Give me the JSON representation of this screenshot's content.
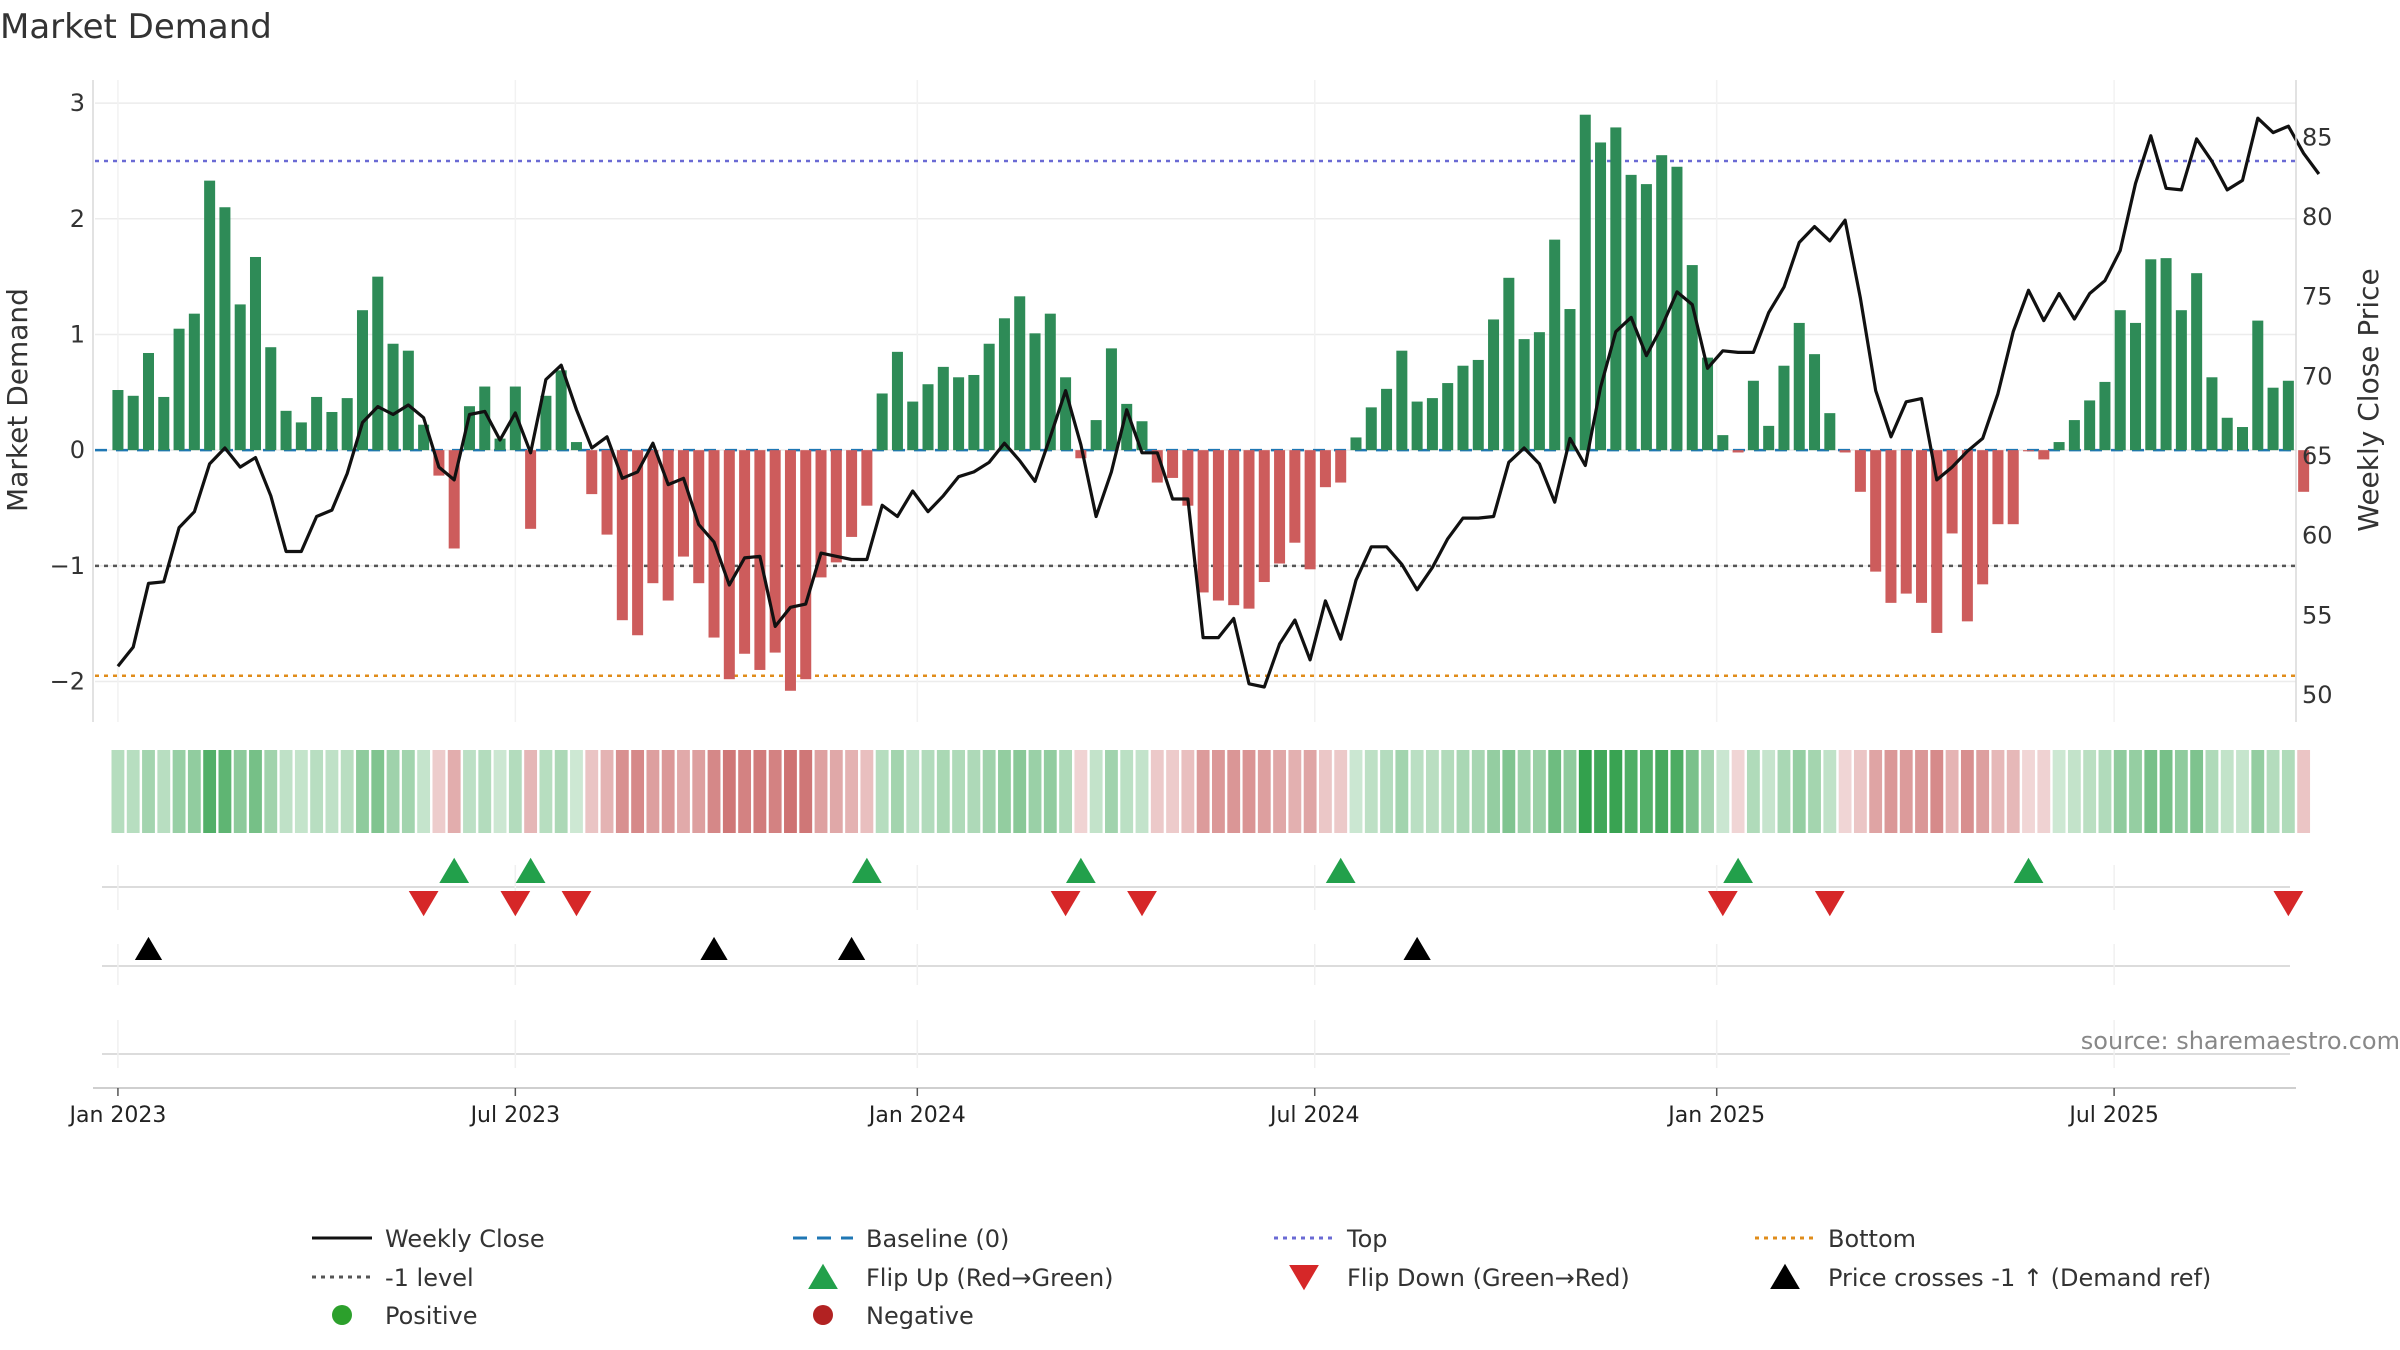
{
  "chart_data": {
    "type": "bar",
    "title": "Market Demand",
    "ylabel": "Market Demand",
    "y2label": "Weekly Close Price",
    "ylim": [
      -2.35,
      3.2
    ],
    "y2lim": [
      48.3,
      88.6
    ],
    "yticks": [
      "3",
      "2",
      "1",
      "0",
      "−1",
      "−2"
    ],
    "y2ticks": [
      "85",
      "80",
      "75",
      "70",
      "65",
      "60",
      "55",
      "50"
    ],
    "x_range_weeks": [
      -1.5,
      142.5
    ],
    "xticks": [
      {
        "label": "Jan 2023",
        "week": 0
      },
      {
        "label": "Jul 2023",
        "week": 26
      },
      {
        "label": "Jan 2024",
        "week": 52.3
      },
      {
        "label": "Jul 2024",
        "week": 78.3
      },
      {
        "label": "Jan 2025",
        "week": 104.6
      },
      {
        "label": "Jul 2025",
        "week": 130.6
      }
    ],
    "reference_lines": {
      "top": 2.5,
      "bottom": -1.95,
      "level_minus1": -1,
      "baseline": 0
    },
    "demand": [
      0.52,
      0.47,
      0.84,
      0.46,
      1.05,
      1.18,
      2.33,
      2.1,
      1.26,
      1.67,
      0.89,
      0.34,
      0.24,
      0.46,
      0.33,
      0.45,
      1.21,
      1.5,
      0.92,
      0.86,
      0.22,
      -0.22,
      -0.85,
      0.38,
      0.55,
      0.1,
      0.55,
      -0.68,
      0.47,
      0.69,
      0.07,
      -0.38,
      -0.73,
      -1.47,
      -1.6,
      -1.15,
      -1.3,
      -0.92,
      -1.15,
      -1.62,
      -1.98,
      -1.76,
      -1.9,
      -1.75,
      -2.08,
      -1.98,
      -1.1,
      -0.97,
      -0.75,
      -0.48,
      0.49,
      0.85,
      0.42,
      0.57,
      0.72,
      0.63,
      0.65,
      0.92,
      1.14,
      1.33,
      1.01,
      1.18,
      0.63,
      -0.07,
      0.26,
      0.88,
      0.4,
      0.25,
      -0.28,
      -0.24,
      -0.48,
      -1.23,
      -1.3,
      -1.34,
      -1.37,
      -1.14,
      -0.98,
      -0.8,
      -1.03,
      -0.32,
      -0.28,
      0.11,
      0.37,
      0.53,
      0.86,
      0.42,
      0.45,
      0.58,
      0.73,
      0.78,
      1.13,
      1.49,
      0.96,
      1.02,
      1.82,
      1.22,
      2.9,
      2.66,
      2.79,
      2.38,
      2.3,
      2.55,
      2.45,
      1.6,
      0.8,
      0.13,
      -0.02,
      0.6,
      0.21,
      0.73,
      1.1,
      0.83,
      0.32,
      -0.02,
      -0.36,
      -1.05,
      -1.32,
      -1.24,
      -1.32,
      -1.58,
      -0.72,
      -1.48,
      -1.16,
      -0.64,
      -0.64,
      -0.01,
      -0.08,
      0.07,
      0.26,
      0.43,
      0.59,
      1.21,
      1.1,
      1.65,
      1.66,
      1.21,
      1.53,
      0.63,
      0.28,
      0.2,
      1.12,
      0.54,
      0.6,
      -0.36
    ],
    "weekly_close": [
      51.8,
      53,
      57,
      57.1,
      60.5,
      61.5,
      64.5,
      65.5,
      64.3,
      64.9,
      62.5,
      59,
      59,
      61.2,
      61.6,
      63.9,
      67.1,
      68.1,
      67.6,
      68.2,
      67.4,
      64.3,
      63.5,
      67.6,
      67.8,
      66,
      67.7,
      65.2,
      69.8,
      70.7,
      67.9,
      65.5,
      66.2,
      63.6,
      64,
      65.8,
      63.2,
      63.6,
      60.7,
      59.6,
      56.9,
      58.6,
      58.7,
      54.3,
      55.5,
      55.7,
      58.9,
      58.7,
      58.5,
      58.5,
      61.9,
      61.2,
      62.8,
      61.5,
      62.5,
      63.7,
      64,
      64.6,
      65.8,
      64.7,
      63.4,
      66.2,
      69.1,
      65.7,
      61.2,
      64,
      67.9,
      65.2,
      65.2,
      62.3,
      62.3,
      53.6,
      53.6,
      54.8,
      50.7,
      50.5,
      53.2,
      54.7,
      52.2,
      55.9,
      53.5,
      57.2,
      59.3,
      59.3,
      58.2,
      56.6,
      58,
      59.8,
      61.1,
      61.1,
      61.2,
      64.6,
      65.5,
      64.5,
      62.1,
      66.1,
      64.4,
      69.3,
      72.8,
      73.7,
      71.3,
      73.1,
      75.3,
      74.5,
      70.5,
      71.6,
      71.5,
      71.5,
      74,
      75.6,
      78.4,
      79.4,
      78.5,
      79.8,
      74.9,
      69.1,
      66.2,
      68.4,
      68.6,
      63.5,
      64.3,
      65.3,
      66.1,
      68.9,
      72.8,
      75.4,
      73.5,
      75.2,
      73.6,
      75.2,
      76,
      77.9,
      82.1,
      85.1,
      81.8,
      81.7,
      84.9,
      83.5,
      81.7,
      82.3,
      86.2,
      85.3,
      85.7,
      84,
      82.7
    ],
    "flip_up_weeks": [
      22,
      27,
      49,
      63,
      80,
      106,
      125
    ],
    "flip_down_weeks": [
      20,
      26,
      30,
      62,
      67,
      105,
      112,
      142
    ],
    "price_cross_weeks": [
      2,
      39,
      48,
      85
    ],
    "source_text": "source: sharemaestro.com",
    "colors": {
      "positive_bar": "#2e8b57",
      "negative_bar": "#cd5c5c",
      "price_line": "#111111",
      "baseline": "#1f77b4",
      "top": "#6a6ad4",
      "bottom": "#e08c1a",
      "level": "#555555",
      "flip_up": "#22a04b",
      "flip_down": "#d62728",
      "cross": "#000000",
      "legend_positive": "#2ca02c",
      "legend_negative": "#b22222"
    },
    "legend": [
      {
        "label": "Weekly Close",
        "kind": "line",
        "style": "solid",
        "color_key": "price_line"
      },
      {
        "label": "Baseline (0)",
        "kind": "line",
        "style": "dash",
        "color_key": "baseline"
      },
      {
        "label": "Top",
        "kind": "line",
        "style": "dot",
        "color_key": "top"
      },
      {
        "label": "Bottom",
        "kind": "line",
        "style": "dot",
        "color_key": "bottom"
      },
      {
        "label": "-1 level",
        "kind": "line",
        "style": "dot",
        "color_key": "level"
      },
      {
        "label": "Flip Up (Red→Green)",
        "kind": "tri-up",
        "color_key": "flip_up"
      },
      {
        "label": "Flip Down (Green→Red)",
        "kind": "tri-down",
        "color_key": "flip_down"
      },
      {
        "label": "Price crosses -1 ↑ (Demand ref)",
        "kind": "tri-up",
        "color_key": "cross"
      },
      {
        "label": "Positive",
        "kind": "dot",
        "color_key": "legend_positive"
      },
      {
        "label": "Negative",
        "kind": "dot",
        "color_key": "legend_negative"
      }
    ]
  }
}
